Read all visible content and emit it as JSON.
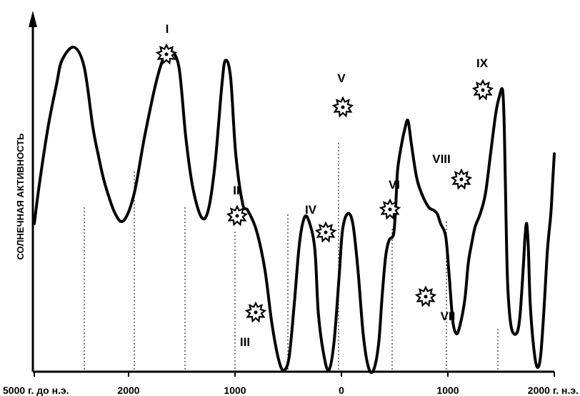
{
  "chart_data": {
    "type": "line",
    "ylabel": "СОЛНЕЧНАЯ АКТИВНОСТЬ",
    "x_tick_labels": [
      {
        "label": "5000 г. до н.э.",
        "x": -5000
      },
      {
        "label": "2000",
        "x": -2000
      },
      {
        "label": "1000",
        "x": -1000
      },
      {
        "label": "0",
        "x": 0
      },
      {
        "label": "1000",
        "x": 1000
      },
      {
        "label": "2000 г. н.э.",
        "x": 2000
      }
    ],
    "series": [
      {
        "points": [
          [
            -3200,
            0.44
          ],
          [
            -3170,
            0.56
          ],
          [
            -3120,
            0.73
          ],
          [
            -3070,
            0.86
          ],
          [
            -3040,
            0.93
          ],
          [
            -2970,
            0.97
          ],
          [
            -2910,
            0.91
          ],
          [
            -2860,
            0.73
          ],
          [
            -2830,
            0.65
          ],
          [
            -2790,
            0.56
          ],
          [
            -2730,
            0.47
          ],
          [
            -2680,
            0.45
          ],
          [
            -2620,
            0.53
          ],
          [
            -2560,
            0.7
          ],
          [
            -2490,
            0.87
          ],
          [
            -2440,
            0.95
          ],
          [
            -2410,
            0.96
          ],
          [
            -2360,
            0.91
          ],
          [
            -2320,
            0.7
          ],
          [
            -2280,
            0.55
          ],
          [
            -2230,
            0.46
          ],
          [
            -2190,
            0.48
          ],
          [
            -2150,
            0.62
          ],
          [
            -2110,
            0.86
          ],
          [
            -2090,
            0.93
          ],
          [
            -2060,
            0.88
          ],
          [
            -2030,
            0.65
          ],
          [
            -1990,
            0.5
          ],
          [
            -1960,
            0.48
          ],
          [
            -1910,
            0.42
          ],
          [
            -1860,
            0.3
          ],
          [
            -1820,
            0.14
          ],
          [
            -1780,
            0.03
          ],
          [
            -1750,
            0.0
          ],
          [
            -1720,
            0.04
          ],
          [
            -1690,
            0.2
          ],
          [
            -1660,
            0.38
          ],
          [
            -1630,
            0.46
          ],
          [
            -1600,
            0.44
          ],
          [
            -1570,
            0.36
          ],
          [
            -1550,
            0.17
          ],
          [
            -1520,
            0.05
          ],
          [
            -1490,
            0.0
          ],
          [
            -1460,
            0.08
          ],
          [
            -1430,
            0.28
          ],
          [
            -1410,
            0.42
          ],
          [
            -1380,
            0.47
          ],
          [
            -1350,
            0.44
          ],
          [
            -1320,
            0.3
          ],
          [
            -1290,
            0.11
          ],
          [
            -1260,
            0.01
          ],
          [
            -1230,
            0.0
          ],
          [
            -1200,
            0.08
          ],
          [
            -1180,
            0.22
          ],
          [
            -1160,
            0.34
          ],
          [
            -1140,
            0.39
          ],
          [
            -1120,
            0.4
          ],
          [
            -1110,
            0.42
          ],
          [
            -1100,
            0.5
          ],
          [
            -1090,
            0.6
          ],
          [
            -1070,
            0.67
          ],
          [
            -1050,
            0.72
          ],
          [
            -1030,
            0.75
          ],
          [
            -1010,
            0.68
          ],
          [
            -980,
            0.58
          ],
          [
            -950,
            0.53
          ],
          [
            -910,
            0.49
          ],
          [
            -880,
            0.48
          ],
          [
            -860,
            0.47
          ],
          [
            -840,
            0.44
          ],
          [
            -810,
            0.4
          ],
          [
            -790,
            0.28
          ],
          [
            -770,
            0.15
          ],
          [
            -750,
            0.11
          ],
          [
            -730,
            0.13
          ],
          [
            -700,
            0.21
          ],
          [
            -680,
            0.32
          ],
          [
            -660,
            0.38
          ],
          [
            -640,
            0.43
          ],
          [
            -610,
            0.47
          ],
          [
            -580,
            0.53
          ],
          [
            -550,
            0.65
          ],
          [
            -520,
            0.77
          ],
          [
            -500,
            0.82
          ],
          [
            -480,
            0.84
          ],
          [
            -470,
            0.72
          ],
          [
            -460,
            0.45
          ],
          [
            -450,
            0.25
          ],
          [
            -430,
            0.13
          ],
          [
            -400,
            0.11
          ],
          [
            -380,
            0.16
          ],
          [
            -360,
            0.31
          ],
          [
            -350,
            0.4
          ],
          [
            -340,
            0.44
          ],
          [
            -330,
            0.36
          ],
          [
            -320,
            0.2
          ],
          [
            -300,
            0.07
          ],
          [
            -280,
            0.01
          ],
          [
            -260,
            0.04
          ],
          [
            -240,
            0.18
          ],
          [
            -220,
            0.36
          ],
          [
            -200,
            0.47
          ],
          [
            -190,
            0.56
          ],
          [
            -180,
            0.65
          ]
        ]
      }
    ],
    "events": [
      {
        "label": "I",
        "x": -2090,
        "y": 0.93
      },
      {
        "label": "II",
        "x": -1630,
        "y": 0.46
      },
      {
        "label": "III",
        "x": -1570,
        "y": 0.17
      },
      {
        "label": "IV",
        "x": -1330,
        "y": 0.4
      },
      {
        "label": "V",
        "x": -1020,
        "y": 0.73
      },
      {
        "label": "VI",
        "x": -850,
        "y": 0.47
      },
      {
        "label": "VII",
        "x": -730,
        "y": 0.23
      },
      {
        "label": "VIII",
        "x": -570,
        "y": 0.57
      },
      {
        "label": "IX",
        "x": -470,
        "y": 0.81
      }
    ]
  }
}
